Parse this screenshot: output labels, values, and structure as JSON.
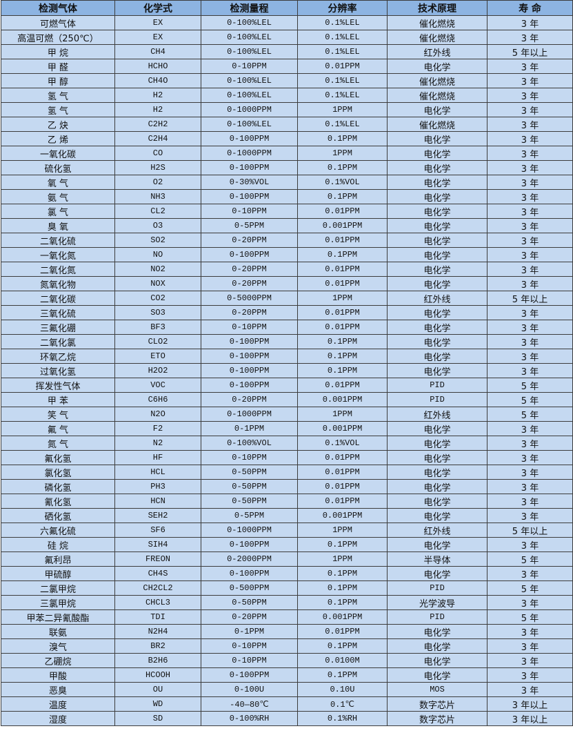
{
  "table": {
    "headers": [
      "检测气体",
      "化学式",
      "检测量程",
      "分辨率",
      "技术原理",
      "寿 命"
    ],
    "rows": [
      [
        "可燃气体",
        "EX",
        "0-100%LEL",
        "0.1%LEL",
        "催化燃烧",
        "3 年"
      ],
      [
        "高温可燃（250℃）",
        "EX",
        "0-100%LEL",
        "0.1%LEL",
        "催化燃烧",
        "3 年"
      ],
      [
        "甲 烷",
        "CH4",
        "0-100%LEL",
        "0.1%LEL",
        "红外线",
        "5 年以上"
      ],
      [
        "甲 醛",
        "HCHO",
        "0-10PPM",
        "0.01PPM",
        "电化学",
        "3 年"
      ],
      [
        "甲 醇",
        "CH4O",
        "0-100%LEL",
        "0.1%LEL",
        "催化燃烧",
        "3 年"
      ],
      [
        "氢 气",
        "H2",
        "0-100%LEL",
        "0.1%LEL",
        "催化燃烧",
        "3 年"
      ],
      [
        "氢 气",
        "H2",
        "0-1000PPM",
        "1PPM",
        "电化学",
        "3 年"
      ],
      [
        "乙 炔",
        "C2H2",
        "0-100%LEL",
        "0.1%LEL",
        "催化燃烧",
        "3 年"
      ],
      [
        "乙 烯",
        "C2H4",
        "0-100PPM",
        "0.1PPM",
        "电化学",
        "3 年"
      ],
      [
        "一氧化碳",
        "CO",
        "0-1000PPM",
        "1PPM",
        "电化学",
        "3 年"
      ],
      [
        "硫化氢",
        "H2S",
        "0-100PPM",
        "0.1PPM",
        "电化学",
        "3 年"
      ],
      [
        "氧 气",
        "O2",
        "0-30%VOL",
        "0.1%VOL",
        "电化学",
        "3 年"
      ],
      [
        "氨 气",
        "NH3",
        "0-100PPM",
        "0.1PPM",
        "电化学",
        "3 年"
      ],
      [
        "氯 气",
        "CL2",
        "0-10PPM",
        "0.01PPM",
        "电化学",
        "3 年"
      ],
      [
        "臭 氧",
        "O3",
        "0-5PPM",
        "0.001PPM",
        "电化学",
        "3 年"
      ],
      [
        "二氧化硫",
        "SO2",
        "0-20PPM",
        "0.01PPM",
        "电化学",
        "3 年"
      ],
      [
        "一氧化氮",
        "NO",
        "0-100PPM",
        "0.1PPM",
        "电化学",
        "3 年"
      ],
      [
        "二氧化氮",
        "NO2",
        "0-20PPM",
        "0.01PPM",
        "电化学",
        "3 年"
      ],
      [
        "氮氧化物",
        "NOX",
        "0-20PPM",
        "0.01PPM",
        "电化学",
        "3 年"
      ],
      [
        "二氧化碳",
        "CO2",
        "0-5000PPM",
        "1PPM",
        "红外线",
        "5 年以上"
      ],
      [
        "三氧化硫",
        "SO3",
        "0-20PPM",
        "0.01PPM",
        "电化学",
        "3 年"
      ],
      [
        "三氟化硼",
        "BF3",
        "0-10PPM",
        "0.01PPM",
        "电化学",
        "3 年"
      ],
      [
        "二氧化氯",
        "CLO2",
        "0-100PPM",
        "0.1PPM",
        "电化学",
        "3 年"
      ],
      [
        "环氧乙烷",
        "ETO",
        "0-100PPM",
        "0.1PPM",
        "电化学",
        "3 年"
      ],
      [
        "过氧化氢",
        "H2O2",
        "0-100PPM",
        "0.1PPM",
        "电化学",
        "3 年"
      ],
      [
        "挥发性气体",
        "VOC",
        "0-100PPM",
        "0.01PPM",
        "PID",
        "5 年"
      ],
      [
        "甲 苯",
        "C6H6",
        "0-20PPM",
        "0.001PPM",
        "PID",
        "5 年"
      ],
      [
        "笑 气",
        "N2O",
        "0-1000PPM",
        "1PPM",
        "红外线",
        "5 年"
      ],
      [
        "氟 气",
        "F2",
        "0-1PPM",
        "0.001PPM",
        "电化学",
        "3 年"
      ],
      [
        "氮 气",
        "N2",
        "0-100%VOL",
        "0.1%VOL",
        "电化学",
        "3 年"
      ],
      [
        "氟化氢",
        "HF",
        "0-10PPM",
        "0.01PPM",
        "电化学",
        "3 年"
      ],
      [
        "氯化氢",
        "HCL",
        "0-50PPM",
        "0.01PPM",
        "电化学",
        "3 年"
      ],
      [
        "磷化氢",
        "PH3",
        "0-50PPM",
        "0.01PPM",
        "电化学",
        "3 年"
      ],
      [
        "氰化氢",
        "HCN",
        "0-50PPM",
        "0.01PPM",
        "电化学",
        "3 年"
      ],
      [
        "硒化氢",
        "SEH2",
        "0-5PPM",
        "0.001PPM",
        "电化学",
        "3 年"
      ],
      [
        "六氟化硫",
        "SF6",
        "0-1000PPM",
        "1PPM",
        "红外线",
        "5 年以上"
      ],
      [
        "硅 烷",
        "SIH4",
        "0-100PPM",
        "0.1PPM",
        "电化学",
        "3 年"
      ],
      [
        "氟利昂",
        "FREON",
        "0-2000PPM",
        "1PPM",
        "半导体",
        "5 年"
      ],
      [
        "甲硫醇",
        "CH4S",
        "0-100PPM",
        "0.1PPM",
        "电化学",
        "3 年"
      ],
      [
        "二氯甲烷",
        "CH2CL2",
        "0-500PPM",
        "0.1PPM",
        "PID",
        "5 年"
      ],
      [
        "三氯甲烷",
        "CHCL3",
        "0-50PPM",
        "0.1PPM",
        "光学波导",
        "3 年"
      ],
      [
        "甲苯二异氰酸酯",
        "TDI",
        "0-20PPM",
        "0.001PPM",
        "PID",
        "5 年"
      ],
      [
        "联氨",
        "N2H4",
        "0-1PPM",
        "0.01PPM",
        "电化学",
        "3 年"
      ],
      [
        "溴气",
        "BR2",
        "0-10PPM",
        "0.1PPM",
        "电化学",
        "3 年"
      ],
      [
        "乙硼烷",
        "B2H6",
        "0-10PPM",
        "0.0100M",
        "电化学",
        "3 年"
      ],
      [
        "甲酸",
        "HCOOH",
        "0-100PPM",
        "0.1PPM",
        "电化学",
        "3 年"
      ],
      [
        "恶臭",
        "OU",
        "0-100U",
        "0.10U",
        "MOS",
        "3 年"
      ],
      [
        "温度",
        "WD",
        "-40—80℃",
        "0.1℃",
        "数字芯片",
        "3 年以上"
      ],
      [
        "湿度",
        "SD",
        "0-100%RH",
        "0.1%RH",
        "数字芯片",
        "3 年以上"
      ]
    ]
  },
  "colors": {
    "header_bg": "#8db4e2",
    "row_bg": "#c5d9f1",
    "border": "#3c3c3c"
  }
}
